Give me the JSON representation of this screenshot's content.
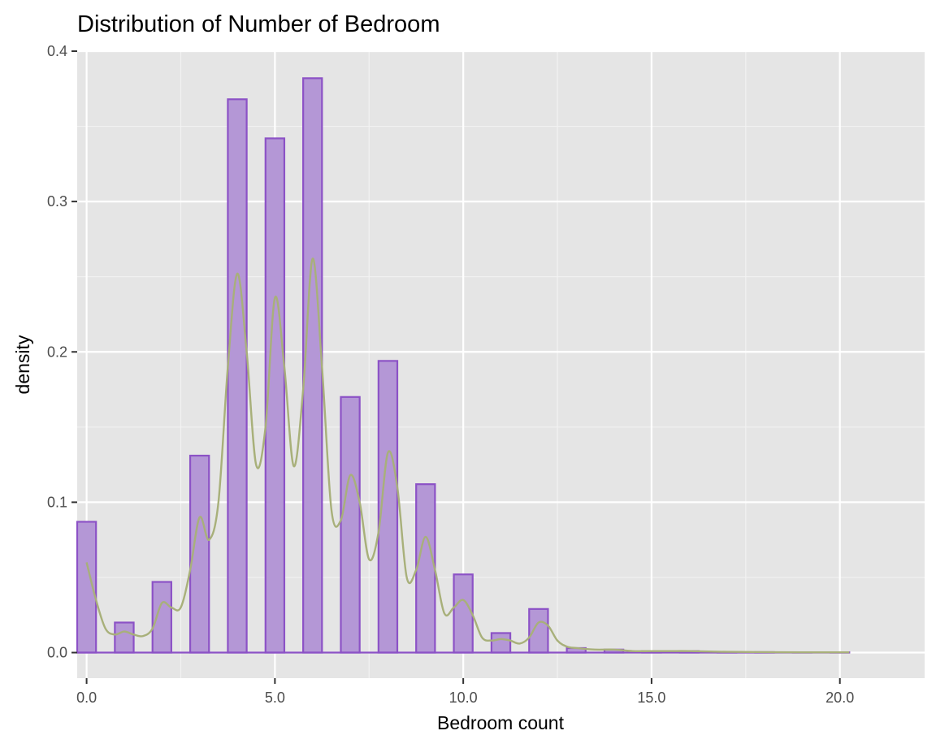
{
  "chart_data": {
    "type": "bar",
    "title": "Distribution of Number of Bedroom",
    "xlabel": "Bedroom count",
    "ylabel": "density",
    "xlim": [
      -0.25,
      22.25
    ],
    "ylim": [
      -0.017,
      0.4
    ],
    "x_ticks": [
      0,
      5,
      10,
      15,
      20
    ],
    "x_tick_labels": [
      "0.0",
      "5.0",
      "10.0",
      "15.0",
      "20.0"
    ],
    "y_ticks": [
      0,
      0.1,
      0.2,
      0.3,
      0.4
    ],
    "y_tick_labels": [
      "0.0",
      "0.1",
      "0.2",
      "0.3",
      "0.4"
    ],
    "grid": true,
    "legend": "none",
    "bin_width": 0.5,
    "bins": [
      {
        "x": 0,
        "density": 0.087
      },
      {
        "x": 1,
        "density": 0.02
      },
      {
        "x": 2,
        "density": 0.047
      },
      {
        "x": 3,
        "density": 0.131
      },
      {
        "x": 4,
        "density": 0.368
      },
      {
        "x": 5,
        "density": 0.342
      },
      {
        "x": 6,
        "density": 0.382
      },
      {
        "x": 7,
        "density": 0.17
      },
      {
        "x": 8,
        "density": 0.194
      },
      {
        "x": 9,
        "density": 0.112
      },
      {
        "x": 10,
        "density": 0.052
      },
      {
        "x": 11,
        "density": 0.013
      },
      {
        "x": 12,
        "density": 0.029
      },
      {
        "x": 13,
        "density": 0.003
      },
      {
        "x": 14,
        "density": 0.002
      },
      {
        "x": 15,
        "density": 0.001
      },
      {
        "x": 16,
        "density": 0.001
      },
      {
        "x": 17,
        "density": 0.0005
      },
      {
        "x": 18,
        "density": 0.0003
      },
      {
        "x": 19,
        "density": 0.0002
      },
      {
        "x": 20,
        "density": 0.0002
      }
    ],
    "density_curve": {
      "x": [
        0,
        0.25,
        0.5,
        0.75,
        1,
        1.25,
        1.5,
        1.75,
        2,
        2.25,
        2.5,
        2.75,
        3,
        3.25,
        3.5,
        3.75,
        4,
        4.25,
        4.5,
        4.75,
        5,
        5.25,
        5.5,
        5.75,
        6,
        6.25,
        6.5,
        6.75,
        7,
        7.25,
        7.5,
        7.75,
        8,
        8.25,
        8.5,
        8.75,
        9,
        9.25,
        9.5,
        9.75,
        10,
        10.25,
        10.5,
        10.75,
        11,
        11.25,
        11.5,
        11.75,
        12,
        12.25,
        12.5,
        12.75,
        13,
        13.5,
        14,
        14.5,
        15,
        15.5,
        16,
        17,
        18,
        19,
        20.25
      ],
      "y": [
        0.06,
        0.035,
        0.016,
        0.012,
        0.014,
        0.012,
        0.011,
        0.016,
        0.033,
        0.03,
        0.03,
        0.055,
        0.09,
        0.075,
        0.1,
        0.19,
        0.252,
        0.2,
        0.125,
        0.15,
        0.236,
        0.19,
        0.124,
        0.175,
        0.262,
        0.19,
        0.095,
        0.088,
        0.118,
        0.1,
        0.062,
        0.08,
        0.133,
        0.11,
        0.05,
        0.055,
        0.077,
        0.055,
        0.026,
        0.03,
        0.035,
        0.025,
        0.01,
        0.008,
        0.009,
        0.008,
        0.006,
        0.01,
        0.02,
        0.018,
        0.008,
        0.004,
        0.003,
        0.002,
        0.002,
        0.001,
        0.001,
        0.001,
        0.001,
        0.0005,
        0.0003,
        0.0002,
        0.0002
      ]
    },
    "colors": {
      "bar_fill": "#b497d6",
      "bar_stroke": "#8c52c6",
      "curve": "#a8b07a",
      "panel_bg": "#e5e5e5",
      "grid_major": "#ffffff",
      "grid_minor": "#f2f2f2"
    }
  }
}
